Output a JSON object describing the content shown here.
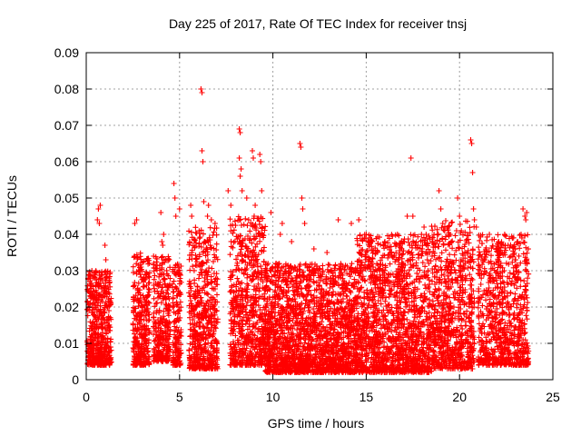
{
  "chart_data": {
    "type": "scatter",
    "title": "Day 225 of 2017, Rate Of TEC Index for receiver tnsj",
    "xlabel": "GPS time / hours",
    "ylabel": "ROTI / TECUs",
    "xlim": [
      0,
      25
    ],
    "ylim": [
      0,
      0.09
    ],
    "xticks": [
      0,
      5,
      10,
      15,
      20,
      25
    ],
    "xtick_labels": [
      "0",
      "5",
      "10",
      "15",
      "20",
      "25"
    ],
    "yticks": [
      0,
      0.01,
      0.02,
      0.03,
      0.04,
      0.05,
      0.06,
      0.07,
      0.08,
      0.09
    ],
    "ytick_labels": [
      "0",
      "0.01",
      "0.02",
      "0.03",
      "0.04",
      "0.05",
      "0.06",
      "0.07",
      "0.08",
      "0.09"
    ],
    "grid": true,
    "marker": "plus",
    "color": "#ff0000",
    "series": [
      {
        "name": "",
        "segments": [
          {
            "x": [
              0.05,
              1.35
            ],
            "ylow": 0.004,
            "yhigh": 0.03,
            "count": 520
          },
          {
            "x": [
              2.5,
              3.4
            ],
            "ylow": 0.004,
            "yhigh": 0.035,
            "count": 330
          },
          {
            "x": [
              3.6,
              4.5
            ],
            "ylow": 0.005,
            "yhigh": 0.034,
            "count": 300
          },
          {
            "x": [
              4.6,
              5.1
            ],
            "ylow": 0.004,
            "yhigh": 0.032,
            "count": 170
          },
          {
            "x": [
              5.5,
              7.05
            ],
            "ylow": 0.003,
            "yhigh": 0.042,
            "count": 560
          },
          {
            "x": [
              7.7,
              9.6
            ],
            "ylow": 0.004,
            "yhigh": 0.045,
            "count": 680
          },
          {
            "x": [
              9.6,
              14.5
            ],
            "ylow": 0.002,
            "yhigh": 0.032,
            "count": 2000
          },
          {
            "x": [
              14.5,
              18.5
            ],
            "ylow": 0.002,
            "yhigh": 0.04,
            "count": 1500
          },
          {
            "x": [
              18.5,
              20.8
            ],
            "ylow": 0.003,
            "yhigh": 0.044,
            "count": 760
          },
          {
            "x": [
              21.0,
              23.7
            ],
            "ylow": 0.004,
            "yhigh": 0.04,
            "count": 820
          }
        ],
        "outliers": [
          {
            "x": 0.3,
            "y": 0.03
          },
          {
            "x": 0.35,
            "y": 0.028
          },
          {
            "x": 0.6,
            "y": 0.044
          },
          {
            "x": 0.65,
            "y": 0.047
          },
          {
            "x": 0.7,
            "y": 0.043
          },
          {
            "x": 0.75,
            "y": 0.048
          },
          {
            "x": 1.0,
            "y": 0.037
          },
          {
            "x": 1.05,
            "y": 0.033
          },
          {
            "x": 2.6,
            "y": 0.043
          },
          {
            "x": 2.7,
            "y": 0.044
          },
          {
            "x": 3.3,
            "y": 0.023
          },
          {
            "x": 4.0,
            "y": 0.046
          },
          {
            "x": 4.05,
            "y": 0.038
          },
          {
            "x": 4.1,
            "y": 0.037
          },
          {
            "x": 4.15,
            "y": 0.04
          },
          {
            "x": 4.7,
            "y": 0.054
          },
          {
            "x": 4.75,
            "y": 0.05
          },
          {
            "x": 4.8,
            "y": 0.045
          },
          {
            "x": 5.0,
            "y": 0.047
          },
          {
            "x": 5.6,
            "y": 0.048
          },
          {
            "x": 5.65,
            "y": 0.045
          },
          {
            "x": 6.15,
            "y": 0.08
          },
          {
            "x": 6.2,
            "y": 0.079
          },
          {
            "x": 6.2,
            "y": 0.063
          },
          {
            "x": 6.25,
            "y": 0.06
          },
          {
            "x": 6.3,
            "y": 0.049
          },
          {
            "x": 6.5,
            "y": 0.045
          },
          {
            "x": 6.55,
            "y": 0.048
          },
          {
            "x": 6.7,
            "y": 0.044
          },
          {
            "x": 6.9,
            "y": 0.043
          },
          {
            "x": 7.6,
            "y": 0.052
          },
          {
            "x": 7.75,
            "y": 0.048
          },
          {
            "x": 8.2,
            "y": 0.069
          },
          {
            "x": 8.25,
            "y": 0.068
          },
          {
            "x": 8.2,
            "y": 0.061
          },
          {
            "x": 8.3,
            "y": 0.058
          },
          {
            "x": 8.25,
            "y": 0.056
          },
          {
            "x": 8.35,
            "y": 0.052
          },
          {
            "x": 8.9,
            "y": 0.063
          },
          {
            "x": 8.95,
            "y": 0.061
          },
          {
            "x": 9.0,
            "y": 0.045
          },
          {
            "x": 9.05,
            "y": 0.048
          },
          {
            "x": 9.3,
            "y": 0.062
          },
          {
            "x": 9.35,
            "y": 0.06
          },
          {
            "x": 9.4,
            "y": 0.052
          },
          {
            "x": 8.6,
            "y": 0.05
          },
          {
            "x": 8.7,
            "y": 0.044
          },
          {
            "x": 9.9,
            "y": 0.046
          },
          {
            "x": 10.4,
            "y": 0.04
          },
          {
            "x": 10.5,
            "y": 0.043
          },
          {
            "x": 11.0,
            "y": 0.038
          },
          {
            "x": 11.45,
            "y": 0.065
          },
          {
            "x": 11.5,
            "y": 0.064
          },
          {
            "x": 11.55,
            "y": 0.05
          },
          {
            "x": 11.6,
            "y": 0.047
          },
          {
            "x": 11.7,
            "y": 0.043
          },
          {
            "x": 12.2,
            "y": 0.036
          },
          {
            "x": 12.9,
            "y": 0.035
          },
          {
            "x": 13.5,
            "y": 0.044
          },
          {
            "x": 14.2,
            "y": 0.043
          },
          {
            "x": 14.6,
            "y": 0.044
          },
          {
            "x": 15.0,
            "y": 0.04
          },
          {
            "x": 15.3,
            "y": 0.038
          },
          {
            "x": 16.0,
            "y": 0.038
          },
          {
            "x": 16.9,
            "y": 0.036
          },
          {
            "x": 17.2,
            "y": 0.045
          },
          {
            "x": 17.4,
            "y": 0.061
          },
          {
            "x": 17.5,
            "y": 0.045
          },
          {
            "x": 18.1,
            "y": 0.042
          },
          {
            "x": 18.9,
            "y": 0.052
          },
          {
            "x": 19.0,
            "y": 0.047
          },
          {
            "x": 19.1,
            "y": 0.043
          },
          {
            "x": 19.2,
            "y": 0.041
          },
          {
            "x": 19.5,
            "y": 0.04
          },
          {
            "x": 19.9,
            "y": 0.05
          },
          {
            "x": 20.0,
            "y": 0.045
          },
          {
            "x": 20.6,
            "y": 0.066
          },
          {
            "x": 20.65,
            "y": 0.065
          },
          {
            "x": 20.7,
            "y": 0.057
          },
          {
            "x": 20.75,
            "y": 0.047
          },
          {
            "x": 20.8,
            "y": 0.044
          },
          {
            "x": 20.9,
            "y": 0.042
          },
          {
            "x": 21.6,
            "y": 0.04
          },
          {
            "x": 22.1,
            "y": 0.038
          },
          {
            "x": 22.6,
            "y": 0.037
          },
          {
            "x": 23.4,
            "y": 0.047
          },
          {
            "x": 23.5,
            "y": 0.045
          },
          {
            "x": 23.55,
            "y": 0.044
          },
          {
            "x": 23.6,
            "y": 0.046
          },
          {
            "x": 23.3,
            "y": 0.04
          }
        ]
      }
    ]
  }
}
